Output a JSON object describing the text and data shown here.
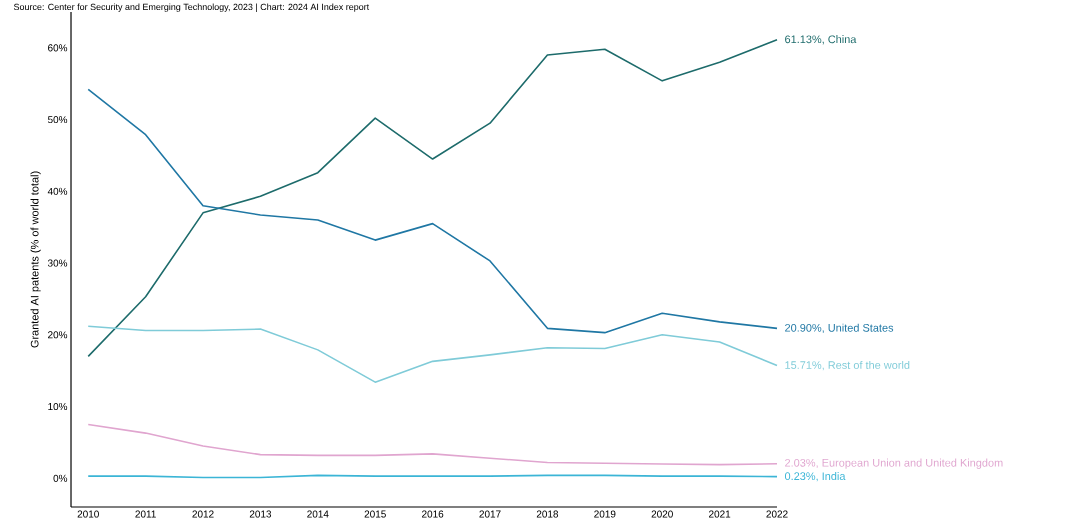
{
  "chart_data": {
    "type": "line",
    "ylabel": "Granted AI patents (% of world total)",
    "categories": [
      "2010",
      "2011",
      "2012",
      "2013",
      "2014",
      "2015",
      "2016",
      "2017",
      "2018",
      "2019",
      "2020",
      "2021",
      "2022"
    ],
    "series": [
      {
        "color": "#1d6b6b",
        "values": [
          17.0,
          25.3,
          37.0,
          39.3,
          42.6,
          50.2,
          44.5,
          49.5,
          59.0,
          59.8,
          55.4,
          58.0,
          61.13
        ]
      },
      {
        "color": "#1f77a4",
        "values": [
          54.2,
          47.9,
          38.0,
          36.7,
          36.0,
          33.2,
          35.5,
          30.3,
          20.9,
          20.3,
          23.0,
          21.8,
          20.9
        ]
      },
      {
        "color": "#7fcbd8",
        "values": [
          21.2,
          20.6,
          20.6,
          20.8,
          17.9,
          13.4,
          16.3,
          17.2,
          18.2,
          18.1,
          20.0,
          19.0,
          15.71
        ]
      },
      {
        "color": "#e0a5cf",
        "values": [
          7.5,
          6.3,
          4.5,
          3.3,
          3.2,
          3.2,
          3.4,
          2.8,
          2.2,
          2.1,
          2.0,
          1.9,
          2.03
        ]
      },
      {
        "color": "#3bb5d6",
        "values": [
          0.3,
          0.3,
          0.1,
          0.1,
          0.4,
          0.3,
          0.3,
          0.3,
          0.4,
          0.4,
          0.3,
          0.3,
          0.23
        ]
      }
    ],
    "ylim": [
      -4,
      65
    ],
    "yticks": [
      {
        "value": 0,
        "label": "0%"
      },
      {
        "value": 10,
        "label": "10%"
      },
      {
        "value": 20,
        "label": "20%"
      },
      {
        "value": 30,
        "label": "30%"
      },
      {
        "value": 40,
        "label": "40%"
      },
      {
        "value": 50,
        "label": "50%"
      },
      {
        "value": 60,
        "label": "60%"
      }
    ],
    "grid": false,
    "marker": "none",
    "line_style": "solid",
    "annotations": [
      "Source: Center for Security and Emerging Technology, 2023 | Chart: 2024 AI Index report",
      {
        "text": "61.13%, China",
        "x": "2022",
        "y": 61.13
      },
      {
        "text": "20.90%, United States",
        "x": "2022",
        "y": 20.9
      },
      {
        "text": "15.71%, Rest of the world",
        "x": "2022",
        "y": 15.71
      },
      {
        "text": "2.03%, European Union and United Kingdom",
        "x": "2022",
        "y": 2.03
      },
      {
        "text": "0.23%, India",
        "x": "2022",
        "y": 0.23
      }
    ]
  }
}
